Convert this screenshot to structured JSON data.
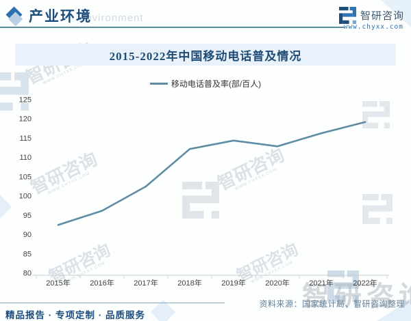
{
  "header": {
    "section_title": "产业环境",
    "section_subtitle": "environment",
    "brand": {
      "name": "智研咨询",
      "url": "www.chyxx.com"
    }
  },
  "chart_data": {
    "type": "line",
    "title": "2015-2022年中国移动电话普及情况",
    "categories": [
      "2015年",
      "2016年",
      "2017年",
      "2018年",
      "2019年",
      "2020年",
      "2021年",
      "2022年"
    ],
    "series": [
      {
        "name": "移动电话普及率(部/百人)",
        "values": [
          92.5,
          96.2,
          102.5,
          112.2,
          114.4,
          112.9,
          116.3,
          119.2
        ]
      }
    ],
    "xlabel": "",
    "ylabel": "",
    "ylim": [
      80,
      125
    ],
    "ytick_step": 5,
    "yticks": [
      80,
      85,
      90,
      95,
      100,
      105,
      110,
      115,
      120,
      125
    ],
    "grid": false,
    "legend_position": "top",
    "line_color": "#5d8ca3"
  },
  "source_note": "资料来源：国家统计局、智研咨询整理",
  "footer_tagline": "精品报告 · 专项定制 · 品质服务",
  "watermark": {
    "text": "智研咨询",
    "subtext": "WWW.CHYXX.COM"
  },
  "colors": {
    "accent_blue": "#2e75b6",
    "dark_navy": "#1c4d7d",
    "banner_bg": "#e9f2fa",
    "line": "#5d8ca3"
  }
}
